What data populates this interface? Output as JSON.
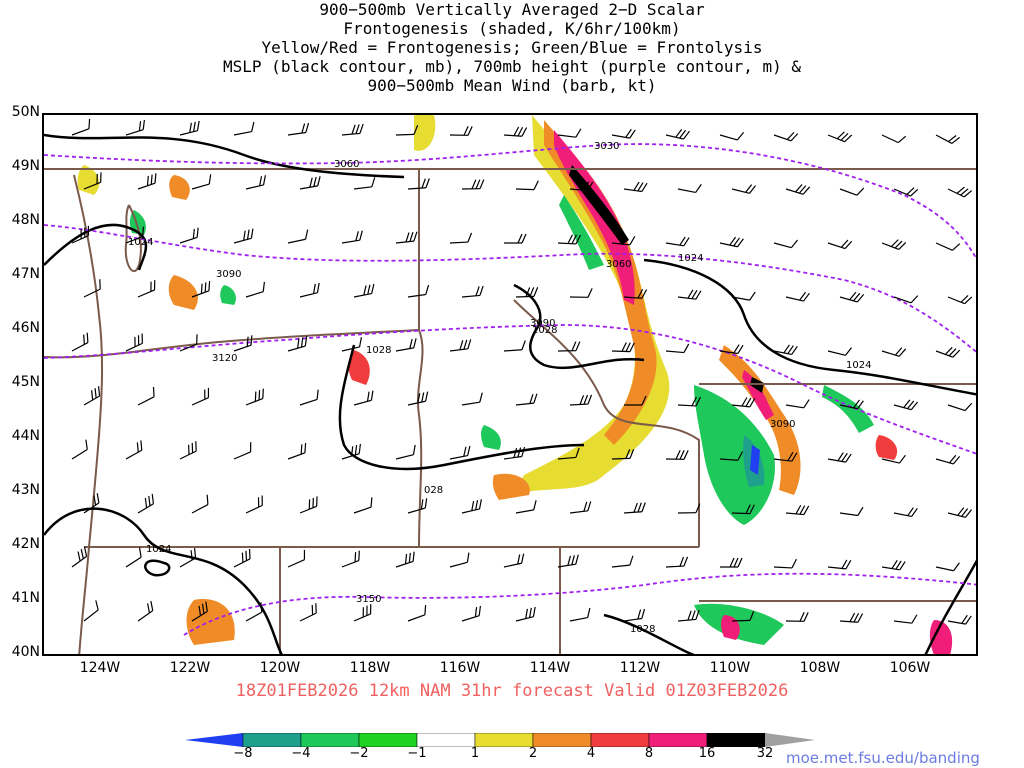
{
  "title": {
    "lines": [
      "900−500mb Vertically Averaged 2−D Scalar",
      "Frontogenesis (shaded, K/6hr/100km)",
      "Yellow/Red = Frontogenesis;  Green/Blue = Frontolysis",
      "MSLP (black contour, mb), 700mb height (purple contour, m) &",
      "900−500mb Mean Wind (barb, kt)"
    ]
  },
  "map": {
    "lat_labels": [
      "50N",
      "49N",
      "48N",
      "47N",
      "46N",
      "45N",
      "44N",
      "43N",
      "42N",
      "41N",
      "40N"
    ],
    "lon_labels": [
      "124W",
      "122W",
      "120W",
      "118W",
      "116W",
      "114W",
      "112W",
      "110W",
      "108W",
      "106W"
    ],
    "lat_range": [
      40,
      50
    ],
    "lon_range": [
      -125.2,
      -105.1
    ],
    "height_contour_labels": [
      "3060",
      "3030",
      "3090",
      "3060",
      "3120",
      "3090",
      "3150",
      "3090"
    ],
    "pressure_contour_labels": [
      "1024",
      "1028",
      "1028",
      "1024",
      "1024",
      "028",
      "1024",
      "1028"
    ]
  },
  "forecast": {
    "valid_line": "18Z01FEB2026 12km NAM 31hr forecast Valid 01Z03FEB2026"
  },
  "colorbar": {
    "tick_labels": [
      "−8",
      "−4",
      "−2",
      "−1",
      "1",
      "2",
      "4",
      "8",
      "16",
      "32"
    ],
    "colors": [
      "#1f3ff0",
      "#1fa08c",
      "#1fc85a",
      "#1fd21f",
      "#ffffff",
      "#e6dc32",
      "#f08c28",
      "#f03c3c",
      "#f01e78",
      "#000000",
      "#a0a0a0"
    ]
  },
  "credit": "moe.met.fsu.edu/banding",
  "style": {
    "border_color": "#7a5a4a",
    "height_contour_color": "#a020f0",
    "pressure_contour_color": "#000000",
    "valid_text_color": "#f06060",
    "credit_color": "#6b7be0"
  }
}
